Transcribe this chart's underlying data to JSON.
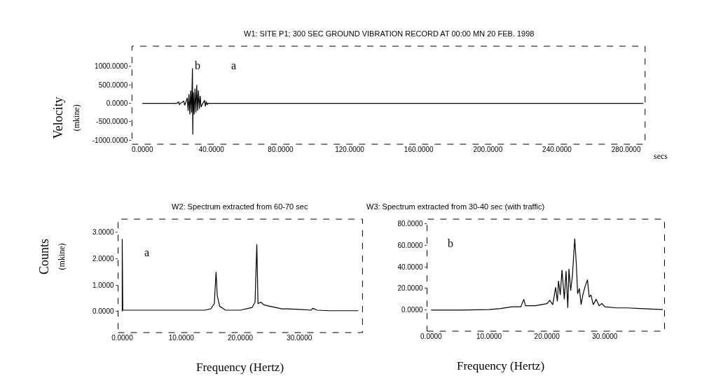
{
  "chart_data": [
    {
      "type": "line",
      "title": "W1: SITE P1; 300 SEC GROUND VIBRATION RECORD AT 00:00 MN 20 FEB. 1998",
      "xlabel": "secs",
      "ylabel": "Velocity (mkine)",
      "series": [
        {
          "color": "#000000",
          "x": [
            0,
            20,
            21,
            21.5,
            22,
            24,
            24.5,
            25,
            26,
            26.5,
            27,
            27.5,
            28,
            28.5,
            29,
            29.2,
            29.5,
            30,
            30.5,
            31,
            31.5,
            32,
            32.5,
            33,
            33.5,
            34,
            35,
            36,
            36.5,
            37,
            37.5,
            38,
            290
          ],
          "values": [
            0,
            0,
            40,
            -40,
            0,
            60,
            -50,
            0,
            150,
            -200,
            250,
            -300,
            350,
            -250,
            950,
            -850,
            300,
            -300,
            400,
            -250,
            500,
            -200,
            350,
            -150,
            200,
            -100,
            0,
            80,
            -80,
            50,
            -40,
            0,
            0
          ]
        }
      ],
      "xlim": [
        -6,
        291
      ],
      "ylim": [
        -1110,
        1550
      ],
      "xticks": [
        {
          "value": 0,
          "label": "0.0000"
        },
        {
          "value": 40,
          "label": "40.0000"
        },
        {
          "value": 80,
          "label": "80.0000"
        },
        {
          "value": 120,
          "label": "120.0000"
        },
        {
          "value": 160,
          "label": "160.0000"
        },
        {
          "value": 200,
          "label": "200.0000"
        },
        {
          "value": 240,
          "label": "240.0000"
        },
        {
          "value": 280,
          "label": "280.0000"
        }
      ],
      "yticks": [
        {
          "value": 1000,
          "label": "1000.0000"
        },
        {
          "value": 500,
          "label": "500.0000"
        },
        {
          "value": 0,
          "label": "0.0000"
        },
        {
          "value": -500,
          "label": "-500.0000"
        },
        {
          "value": -1000,
          "label": "-1000.0000"
        }
      ],
      "annotations": [
        "b",
        "a"
      ],
      "line_style": "solid",
      "marker": "none"
    },
    {
      "type": "line",
      "title": "W2: Spectrum extracted from 60-70 sec",
      "xlabel": "Frequency (Hertz)",
      "ylabel": "Counts (mkine)",
      "series": [
        {
          "color": "#000000",
          "x": [
            0,
            0,
            0.1,
            5,
            10,
            14,
            15,
            15.6,
            15.9,
            16.1,
            16.5,
            17.5,
            20,
            22,
            22.5,
            22.8,
            23,
            23.5,
            24,
            25,
            26,
            27,
            28,
            30,
            32,
            32.3,
            33,
            35,
            40
          ],
          "values": [
            0,
            2.75,
            0.05,
            0.05,
            0.05,
            0.05,
            0.1,
            0.3,
            1.5,
            0.6,
            0.2,
            0.05,
            0.05,
            0.15,
            0.35,
            2.55,
            0.3,
            0.35,
            0.25,
            0.2,
            0.15,
            0.1,
            0.1,
            0.08,
            0.05,
            0.12,
            0.05,
            0.03,
            0.03
          ]
        }
      ],
      "xlim": [
        -0.7,
        40.7
      ],
      "ylim": [
        -0.8,
        3.5
      ],
      "xticks": [
        {
          "value": 0,
          "label": "0.0000"
        },
        {
          "value": 10,
          "label": "10.0000"
        },
        {
          "value": 20,
          "label": "20.0000"
        },
        {
          "value": 30,
          "label": "30.0000"
        }
      ],
      "yticks": [
        {
          "value": 3,
          "label": "3.0000"
        },
        {
          "value": 2,
          "label": "2.0000"
        },
        {
          "value": 1,
          "label": "1.0000"
        },
        {
          "value": 0,
          "label": "0.0000"
        }
      ],
      "annotations": [
        "a"
      ],
      "line_style": "solid",
      "marker": "none"
    },
    {
      "type": "line",
      "title": "W3: Spectrum extracted from 30-40 sec (with traffic)",
      "xlabel": "Frequency (Hertz)",
      "series": [
        {
          "color": "#000000",
          "x": [
            0,
            5,
            10,
            12,
            14,
            15.5,
            16,
            16.3,
            18,
            19,
            20,
            20.5,
            21,
            21.5,
            21.8,
            22,
            22.3,
            22.6,
            23,
            23.3,
            23.6,
            23.8,
            24.1,
            24.4,
            24.8,
            25.1,
            25.3,
            25.6,
            25.9,
            26.2,
            26.6,
            27,
            27.3,
            27.6,
            28,
            28.5,
            29,
            29.5,
            30,
            32,
            34,
            36,
            38,
            40
          ],
          "values": [
            0,
            0,
            0.5,
            1.5,
            3,
            3,
            10,
            4,
            4,
            5,
            6,
            9,
            5,
            21,
            8,
            27,
            14,
            37,
            10,
            36,
            2,
            38,
            18,
            32,
            66,
            40,
            15,
            20,
            5,
            14,
            22,
            28,
            12,
            14,
            5,
            10,
            4,
            6,
            3,
            2,
            2,
            1.5,
            1,
            0.5
          ]
        }
      ],
      "xlim": [
        -0.7,
        40.3
      ],
      "ylim": [
        -19.5,
        84
      ],
      "xticks": [
        {
          "value": 0,
          "label": "0.0000"
        },
        {
          "value": 10,
          "label": "10.0000"
        },
        {
          "value": 20,
          "label": "20.0000"
        },
        {
          "value": 30,
          "label": "30.0000"
        }
      ],
      "yticks": [
        {
          "value": 80,
          "label": "80.0000"
        },
        {
          "value": 60,
          "label": "60.0000"
        },
        {
          "value": 40,
          "label": "40.0000"
        },
        {
          "value": 20,
          "label": "20.0000"
        },
        {
          "value": 0,
          "label": "0.0000"
        }
      ],
      "annotations": [
        "b"
      ],
      "line_style": "solid",
      "marker": "none"
    }
  ]
}
